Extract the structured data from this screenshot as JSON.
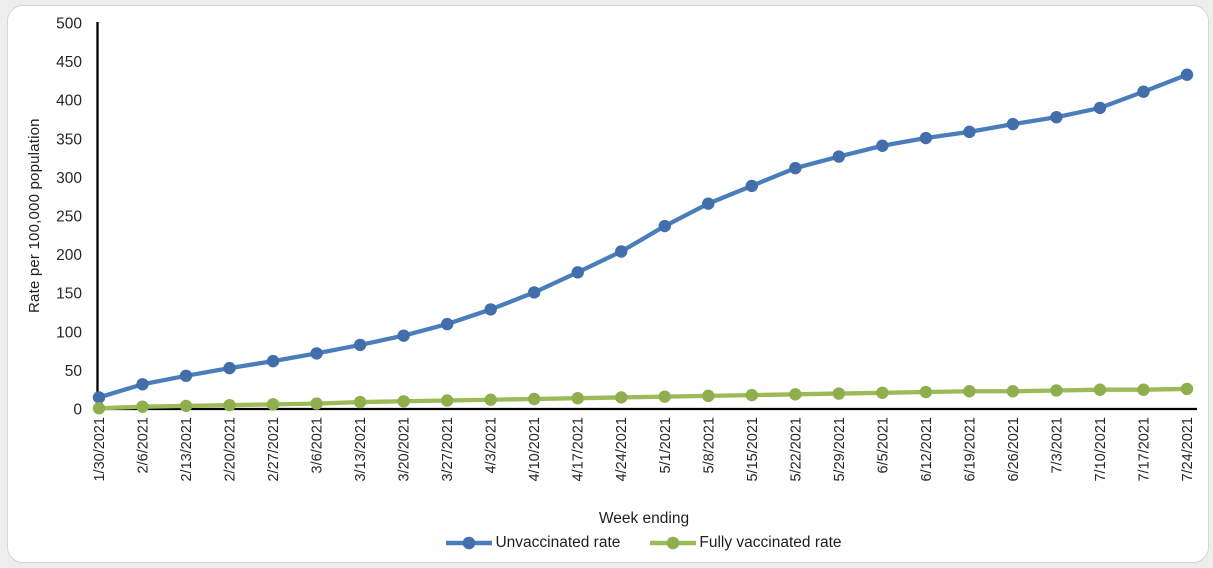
{
  "window": {
    "background_color": "#ffffff",
    "border_color": "#d6d6d6"
  },
  "chart_data": {
    "type": "line",
    "title": "",
    "xlabel": "Week ending",
    "ylabel": "Rate per 100,000 population",
    "ylim": [
      0,
      500
    ],
    "ytick_step": 50,
    "yticks": [
      0,
      50,
      100,
      150,
      200,
      250,
      300,
      350,
      400,
      450,
      500
    ],
    "grid": false,
    "legend_position": "bottom-center",
    "axis_color": "#000000",
    "tick_label_color": "#262626",
    "x": [
      "1/30/2021",
      "2/6/2021",
      "2/13/2021",
      "2/20/2021",
      "2/27/2021",
      "3/6/2021",
      "3/13/2021",
      "3/20/2021",
      "3/27/2021",
      "4/3/2021",
      "4/10/2021",
      "4/17/2021",
      "4/24/2021",
      "5/1/2021",
      "5/8/2021",
      "5/15/2021",
      "5/22/2021",
      "5/29/2021",
      "6/5/2021",
      "6/12/2021",
      "6/19/2021",
      "6/26/2021",
      "7/3/2021",
      "7/10/2021",
      "7/17/2021",
      "7/24/2021"
    ],
    "series": [
      {
        "name": "Unvaccinated rate",
        "color": "#4a7ebb",
        "marker_color": "#426fab",
        "values": [
          15,
          32,
          43,
          53,
          62,
          72,
          83,
          95,
          110,
          129,
          151,
          177,
          204,
          237,
          266,
          289,
          312,
          327,
          341,
          351,
          359,
          369,
          378,
          390,
          411,
          433
        ]
      },
      {
        "name": "Fully vaccinated rate",
        "color": "#9dba59",
        "marker_color": "#8fae4e",
        "values": [
          1,
          3,
          4,
          5,
          6,
          7,
          9,
          10,
          11,
          12,
          13,
          14,
          15,
          16,
          17,
          18,
          19,
          20,
          21,
          22,
          23,
          23,
          24,
          25,
          25,
          26
        ]
      }
    ]
  }
}
